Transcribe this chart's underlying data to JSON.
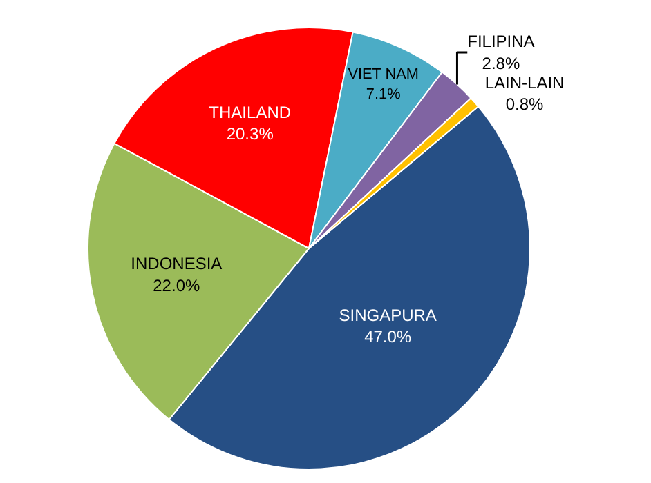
{
  "chart_data": {
    "type": "pie",
    "categories": [
      "SINGAPURA",
      "INDONESIA",
      "THAILAND",
      "VIET NAM",
      "FILIPINA",
      "LAIN-LAIN"
    ],
    "values": [
      47.0,
      22.0,
      20.3,
      7.1,
      2.8,
      0.8
    ],
    "value_labels": [
      "47.0%",
      "22.0%",
      "20.3%",
      "7.1%",
      "2.8%",
      "0.8%"
    ],
    "colors": [
      "#264f85",
      "#9bbb59",
      "#ff0000",
      "#4bacc6",
      "#8064a2",
      "#ffc000"
    ],
    "legend": false
  }
}
